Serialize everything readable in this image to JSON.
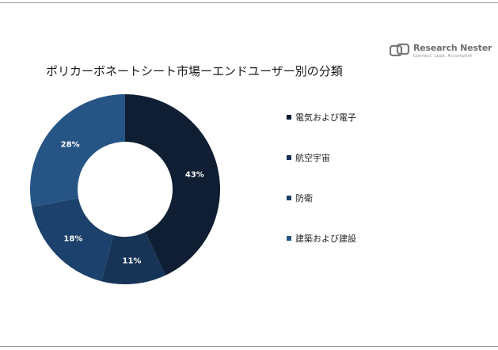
{
  "header": {
    "brand_name": "Research Nester",
    "brand_tagline": "Connect. Lead. Accomplish"
  },
  "chart_data": {
    "type": "pie",
    "title": "ポリカーボネートシート市場ーエンドユーザー別の分類",
    "donut": true,
    "legend_position": "right",
    "categories": [
      "電気および電子",
      "航空宇宙",
      "防衛",
      "建築および建設"
    ],
    "values": [
      43,
      11,
      18,
      28
    ],
    "data_labels": [
      "43%",
      "11%",
      "18%",
      "28%"
    ],
    "colors": [
      "#0f1e33",
      "#173457",
      "#1c416c",
      "#265585"
    ]
  }
}
